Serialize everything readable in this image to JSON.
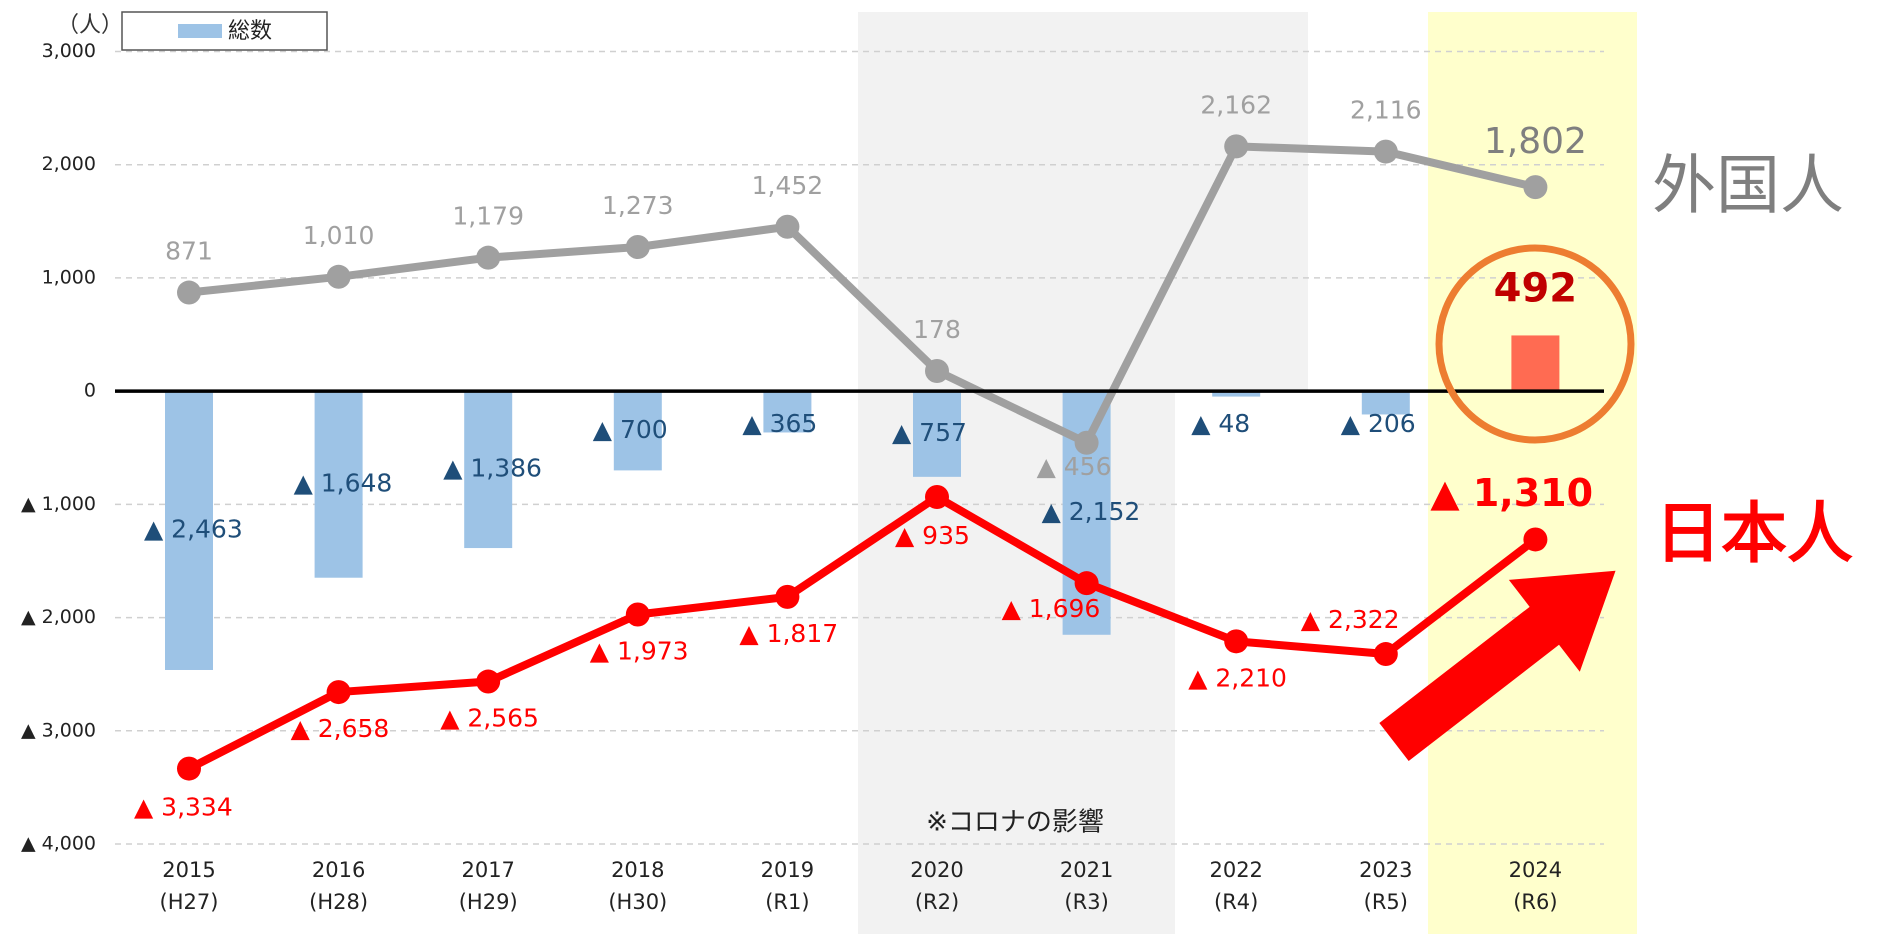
{
  "chart_data": {
    "type": "combo",
    "y_unit_label": "（人）",
    "annotation": "※コロナの影響",
    "categories": [
      "2015",
      "2016",
      "2017",
      "2018",
      "2019",
      "2020",
      "2021",
      "2022",
      "2023",
      "2024"
    ],
    "era_labels": [
      "(H27)",
      "(H28)",
      "(H29)",
      "(H30)",
      "(R1)",
      "(R2)",
      "(R3)",
      "(R4)",
      "(R5)",
      "(R6)"
    ],
    "ylim": [
      -4000,
      3000
    ],
    "yticks": [
      {
        "value": 3000,
        "label": "3,000"
      },
      {
        "value": 2000,
        "label": "2,000"
      },
      {
        "value": 1000,
        "label": "1,000"
      },
      0,
      {
        "value": -1000,
        "label": "▲ 1,000"
      },
      {
        "value": -2000,
        "label": "▲ 2,000"
      },
      {
        "value": -3000,
        "label": "▲ 3,000"
      },
      {
        "value": -4000,
        "label": "▲ 4,000"
      }
    ],
    "grid": true,
    "legend": "top-left",
    "series": [
      {
        "name": "総数",
        "type": "bar",
        "color": "#9dc3e6",
        "label_color": "#1f4e79",
        "colors": [
          "#9dc3e6",
          "#9dc3e6",
          "#9dc3e6",
          "#9dc3e6",
          "#9dc3e6",
          "#9dc3e6",
          "#9dc3e6",
          "#9dc3e6",
          "#9dc3e6",
          "#ff6b52"
        ],
        "values": [
          -2463,
          -1648,
          -1386,
          -700,
          -365,
          -757,
          -2152,
          -48,
          -206,
          492
        ],
        "value_labels": [
          "▲ 2,463",
          "▲ 1,648",
          "▲ 1,386",
          "▲ 700",
          "▲ 365",
          "▲ 757",
          "▲ 2,152",
          "▲ 48",
          "▲ 206",
          "492"
        ]
      },
      {
        "name": "外国人",
        "type": "line",
        "color": "#a0a0a0",
        "values": [
          871,
          1010,
          1179,
          1273,
          1452,
          178,
          -456,
          2162,
          2116,
          1802
        ],
        "value_labels": [
          "871",
          "1,010",
          "1,179",
          "1,273",
          "1,452",
          "178",
          "▲ 456",
          "2,162",
          "2,116",
          "1,802"
        ]
      },
      {
        "name": "日本人",
        "type": "line",
        "color": "#ff0000",
        "values": [
          -3334,
          -2658,
          -2565,
          -1973,
          -1817,
          -935,
          -1696,
          -2210,
          -2322,
          -1310
        ],
        "value_labels": [
          "▲ 3,334",
          "▲ 2,658",
          "▲ 2,565",
          "▲ 1,973",
          "▲ 1,817",
          "▲ 935",
          "▲ 1,696",
          "▲ 2,210",
          "▲ 2,322",
          "▲ 1,310"
        ]
      }
    ]
  }
}
